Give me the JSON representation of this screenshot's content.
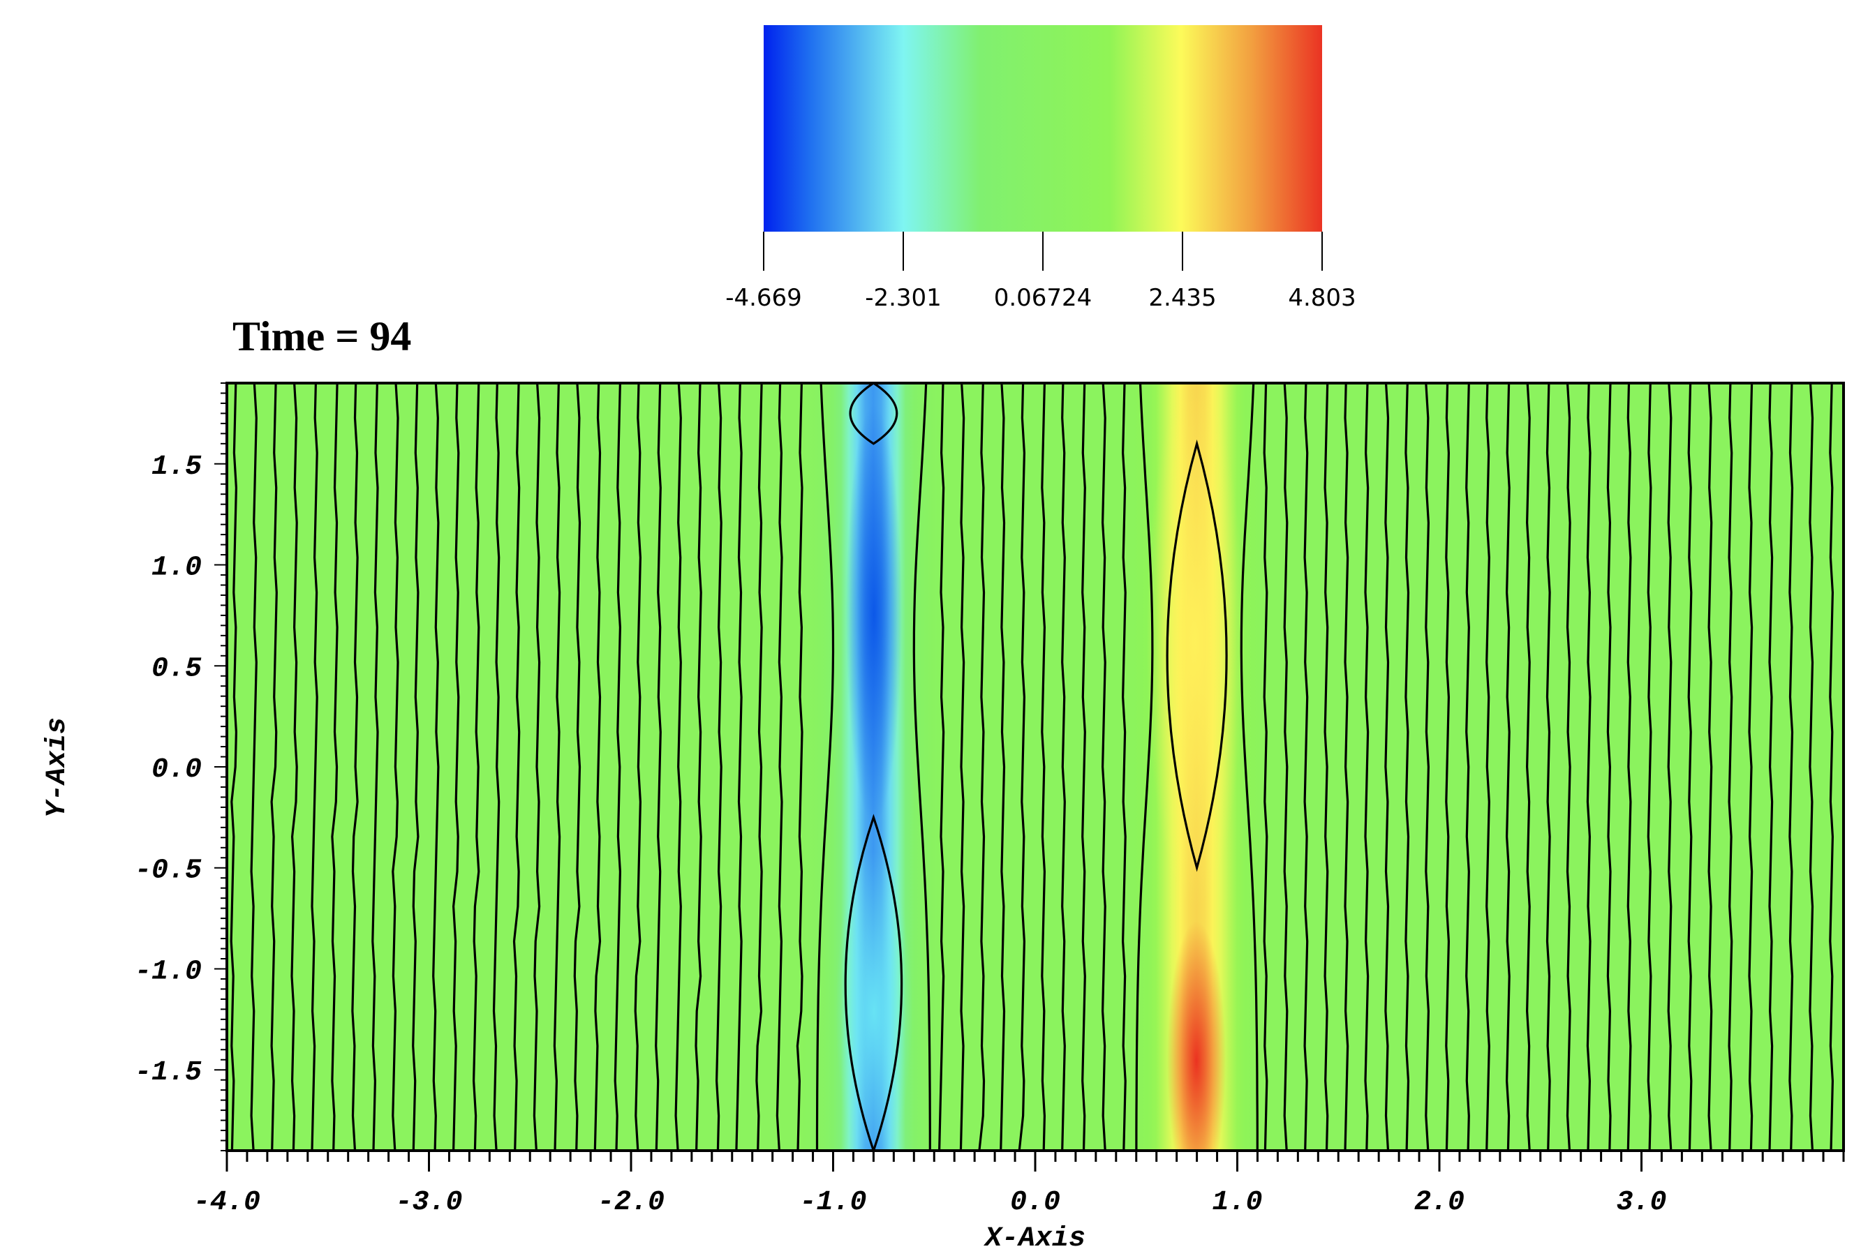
{
  "title": "Time = 94",
  "colorbar": {
    "tick_labels": [
      "-4.669",
      "-2.301",
      "0.06724",
      "2.435",
      "4.803"
    ],
    "tick_values": [
      -4.669,
      -2.301,
      0.06724,
      2.435,
      4.803
    ],
    "range": [
      -4.669,
      4.803
    ],
    "colors": [
      {
        "v": -4.669,
        "c": "#0022ee"
      },
      {
        "v": -3.9,
        "c": "#1e6ef0"
      },
      {
        "v": -2.3,
        "c": "#7ff5f2"
      },
      {
        "v": -1.0,
        "c": "#80f070"
      },
      {
        "v": 1.2,
        "c": "#90f455"
      },
      {
        "v": 2.4,
        "c": "#fcfb5a"
      },
      {
        "v": 3.6,
        "c": "#f2a040"
      },
      {
        "v": 4.803,
        "c": "#ea3323"
      }
    ]
  },
  "chart_data": {
    "type": "contour",
    "xlabel": "X-Axis",
    "ylabel": "Y-Axis",
    "xlim": [
      -4.0,
      4.0
    ],
    "ylim": [
      -1.9,
      1.9
    ],
    "xticks": [
      -4.0,
      -3.0,
      -2.0,
      -1.0,
      0.0,
      1.0,
      2.0,
      3.0
    ],
    "xtick_labels": [
      "-4.0",
      "-3.0",
      "-2.0",
      "-1.0",
      "0.0",
      "1.0",
      "2.0",
      "3.0"
    ],
    "yticks": [
      1.5,
      1.0,
      0.5,
      0.0,
      -0.5,
      -1.0,
      -1.5
    ],
    "ytick_labels": [
      "1.5",
      "1.0",
      "0.5",
      "0.0",
      "-0.5",
      "-1.0",
      "-1.5"
    ],
    "background_value": 0.06724,
    "features": [
      {
        "name": "negative-band",
        "x_center": -0.8,
        "min_value": -4.669,
        "core_y": 0.7
      },
      {
        "name": "positive-band",
        "x_center": 0.8,
        "max_value": 4.803,
        "core_y": -1.5
      }
    ],
    "closed_contours": [
      {
        "x_center": -0.8,
        "y_min": 1.6,
        "y_max": 1.9
      },
      {
        "x_center": -0.8,
        "y_min": -1.9,
        "y_max": -0.25
      },
      {
        "x_center": 0.8,
        "y_min": -0.5,
        "y_max": 1.6
      }
    ],
    "contour_spacing_x": 0.1
  }
}
